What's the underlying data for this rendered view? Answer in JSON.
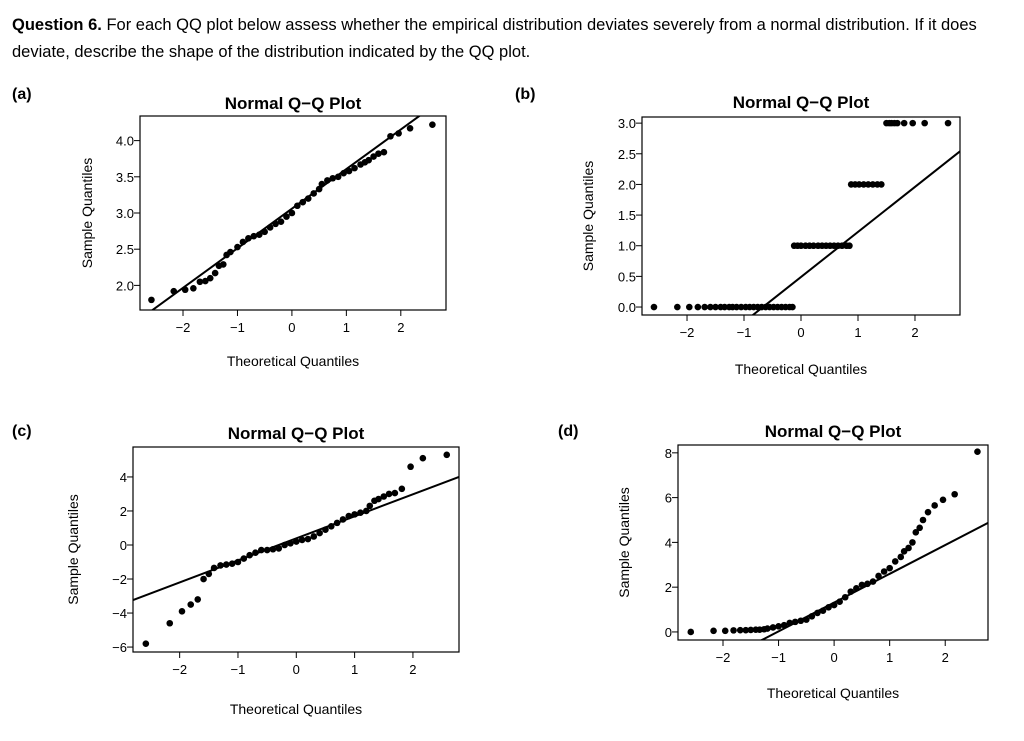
{
  "question": {
    "number": "Question 6.",
    "text": "For each QQ plot below assess whether the empirical distribution deviates severely from a normal distribution. If it does deviate, describe the shape of the distribution indicated by the QQ plot."
  },
  "chart_data": [
    {
      "panel": "(a)",
      "type": "scatter",
      "title": "Normal Q−Q Plot",
      "xlabel": "Theoretical Quantiles",
      "ylabel": "Sample Quantiles",
      "xlim": [
        -2.79,
        2.83
      ],
      "ylim": [
        1.66,
        4.34
      ],
      "xticks": [
        -2,
        -1,
        0,
        1,
        2
      ],
      "xtick_labels": [
        "−2",
        "−1",
        "0",
        "1",
        "2"
      ],
      "yticks": [
        2.0,
        2.5,
        3.0,
        3.5,
        4.0
      ],
      "ytick_labels": [
        "2.0",
        "2.5",
        "3.0",
        "3.5",
        "4.0"
      ],
      "reference_line": {
        "intercept": 3.06,
        "slope": 0.547
      },
      "grid": false,
      "x": [
        -2.58,
        -2.17,
        -1.96,
        -1.81,
        -1.69,
        -1.59,
        -1.5,
        -1.41,
        -1.34,
        -1.26,
        -1.2,
        -1.13,
        -1.0,
        -0.9,
        -0.8,
        -0.7,
        -0.6,
        -0.5,
        -0.4,
        -0.3,
        -0.2,
        -0.1,
        0,
        0.1,
        0.2,
        0.3,
        0.4,
        0.5,
        0.55,
        0.65,
        0.75,
        0.85,
        0.95,
        1.05,
        1.15,
        1.26,
        1.34,
        1.41,
        1.5,
        1.59,
        1.69,
        1.81,
        1.96,
        2.17,
        2.58
      ],
      "y": [
        1.8,
        1.92,
        1.94,
        1.96,
        2.05,
        2.06,
        2.1,
        2.17,
        2.27,
        2.29,
        2.42,
        2.46,
        2.53,
        2.6,
        2.65,
        2.68,
        2.7,
        2.74,
        2.8,
        2.85,
        2.88,
        2.95,
        3.0,
        3.1,
        3.15,
        3.2,
        3.27,
        3.33,
        3.4,
        3.45,
        3.48,
        3.5,
        3.55,
        3.58,
        3.62,
        3.67,
        3.7,
        3.73,
        3.78,
        3.82,
        3.84,
        4.06,
        4.1,
        4.17,
        4.22
      ]
    },
    {
      "panel": "(b)",
      "type": "scatter",
      "title": "Normal Q−Q Plot",
      "xlabel": "Theoretical Quantiles",
      "ylabel": "Sample Quantiles",
      "xlim": [
        -2.79,
        2.79
      ],
      "ylim": [
        -0.13,
        3.1
      ],
      "xticks": [
        -2,
        -1,
        0,
        1,
        2
      ],
      "xtick_labels": [
        "−2",
        "−1",
        "0",
        "1",
        "2"
      ],
      "yticks": [
        0,
        0.5,
        1.0,
        1.5,
        2.0,
        2.5,
        3.0
      ],
      "ytick_labels": [
        "0.0",
        "0.5",
        "1.0",
        "1.5",
        "2.0",
        "2.5",
        "3.0"
      ],
      "reference_line": {
        "intercept": 0.49,
        "slope": 0.735
      },
      "grid": false,
      "x": [
        -2.58,
        -2.17,
        -1.96,
        -1.81,
        -1.69,
        -1.59,
        -1.5,
        -1.41,
        -1.34,
        -1.26,
        -1.2,
        -1.13,
        -1.05,
        -0.97,
        -0.9,
        -0.83,
        -0.76,
        -0.69,
        -0.62,
        -0.55,
        -0.48,
        -0.41,
        -0.34,
        -0.27,
        -0.2,
        -0.15,
        -0.12,
        -0.06,
        0,
        0.08,
        0.15,
        0.22,
        0.3,
        0.37,
        0.44,
        0.51,
        0.58,
        0.65,
        0.72,
        0.8,
        0.85,
        0.88,
        0.95,
        1.02,
        1.1,
        1.18,
        1.26,
        1.34,
        1.41,
        1.5,
        1.55,
        1.59,
        1.64,
        1.69,
        1.81,
        1.96,
        2.17,
        2.58
      ],
      "y": [
        0,
        0,
        0,
        0,
        0,
        0,
        0,
        0,
        0,
        0,
        0,
        0,
        0,
        0,
        0,
        0,
        0,
        0,
        0,
        0,
        0,
        0,
        0,
        0,
        0,
        0,
        1,
        1,
        1,
        1,
        1,
        1,
        1,
        1,
        1,
        1,
        1,
        1,
        1,
        1,
        1,
        2,
        2,
        2,
        2,
        2,
        2,
        2,
        2,
        3,
        3,
        3,
        3,
        3,
        3,
        3,
        3,
        3
      ]
    },
    {
      "panel": "(c)",
      "type": "scatter",
      "title": "Normal Q−Q Plot",
      "xlabel": "Theoretical Quantiles",
      "ylabel": "Sample Quantiles",
      "xlim": [
        -2.8,
        2.79
      ],
      "ylim": [
        -6.29,
        5.76
      ],
      "xticks": [
        -2,
        -1,
        0,
        1,
        2
      ],
      "xtick_labels": [
        "−2",
        "−1",
        "0",
        "1",
        "2"
      ],
      "yticks": [
        -6,
        -4,
        -2,
        0,
        2,
        4
      ],
      "ytick_labels": [
        "−6",
        "−4",
        "−2",
        "0",
        "2",
        "4"
      ],
      "reference_line": {
        "intercept": 0.39,
        "slope": 1.295
      },
      "grid": false,
      "x": [
        -2.58,
        -2.17,
        -1.96,
        -1.81,
        -1.69,
        -1.59,
        -1.5,
        -1.41,
        -1.3,
        -1.2,
        -1.1,
        -1.0,
        -0.9,
        -0.8,
        -0.7,
        -0.6,
        -0.5,
        -0.4,
        -0.3,
        -0.2,
        -0.1,
        0,
        0.1,
        0.2,
        0.3,
        0.4,
        0.5,
        0.6,
        0.7,
        0.8,
        0.9,
        1.0,
        1.1,
        1.2,
        1.26,
        1.34,
        1.41,
        1.5,
        1.59,
        1.69,
        1.81,
        1.96,
        2.17,
        2.58
      ],
      "y": [
        -5.8,
        -4.6,
        -3.9,
        -3.5,
        -3.2,
        -2.0,
        -1.7,
        -1.35,
        -1.2,
        -1.15,
        -1.1,
        -1.0,
        -0.8,
        -0.6,
        -0.45,
        -0.3,
        -0.3,
        -0.25,
        -0.2,
        0,
        0.1,
        0.2,
        0.3,
        0.35,
        0.5,
        0.7,
        0.9,
        1.1,
        1.3,
        1.5,
        1.7,
        1.8,
        1.9,
        2.0,
        2.3,
        2.6,
        2.7,
        2.85,
        3.0,
        3.05,
        3.3,
        4.6,
        5.1,
        5.3
      ]
    },
    {
      "panel": "(d)",
      "type": "scatter",
      "title": "Normal Q−Q Plot",
      "xlabel": "Theoretical Quantiles",
      "ylabel": "Sample Quantiles",
      "xlim": [
        -2.81,
        2.77
      ],
      "ylim": [
        -0.36,
        8.35
      ],
      "xticks": [
        -2,
        -1,
        0,
        1,
        2
      ],
      "xtick_labels": [
        "−2",
        "−1",
        "0",
        "1",
        "2"
      ],
      "yticks": [
        0,
        2,
        4,
        6,
        8
      ],
      "ytick_labels": [
        "0",
        "2",
        "4",
        "6",
        "8"
      ],
      "reference_line": {
        "intercept": 1.31,
        "slope": 1.285
      },
      "grid": false,
      "x": [
        -2.58,
        -2.17,
        -1.96,
        -1.81,
        -1.69,
        -1.59,
        -1.5,
        -1.41,
        -1.34,
        -1.26,
        -1.2,
        -1.1,
        -1.0,
        -0.9,
        -0.8,
        -0.7,
        -0.6,
        -0.5,
        -0.4,
        -0.3,
        -0.2,
        -0.1,
        0,
        0.1,
        0.2,
        0.3,
        0.4,
        0.5,
        0.6,
        0.7,
        0.8,
        0.9,
        1.0,
        1.1,
        1.2,
        1.26,
        1.34,
        1.41,
        1.47,
        1.54,
        1.6,
        1.69,
        1.81,
        1.96,
        2.17,
        2.58
      ],
      "y": [
        0.0,
        0.05,
        0.05,
        0.07,
        0.08,
        0.08,
        0.09,
        0.1,
        0.1,
        0.12,
        0.15,
        0.2,
        0.25,
        0.3,
        0.4,
        0.45,
        0.5,
        0.55,
        0.7,
        0.85,
        0.95,
        1.1,
        1.2,
        1.35,
        1.55,
        1.8,
        1.95,
        2.1,
        2.15,
        2.25,
        2.5,
        2.7,
        2.85,
        3.15,
        3.35,
        3.6,
        3.75,
        4.0,
        4.45,
        4.65,
        5.0,
        5.35,
        5.65,
        5.9,
        6.15,
        8.05
      ]
    }
  ]
}
